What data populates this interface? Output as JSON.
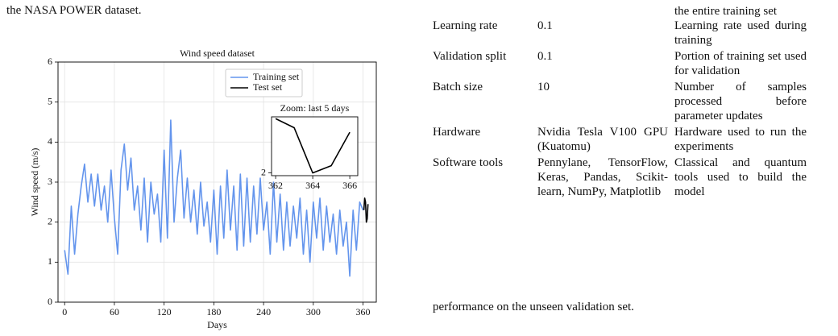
{
  "text_top": "the NASA POWER dataset.",
  "chart_data": [
    {
      "type": "line",
      "title": "Wind speed dataset",
      "xlabel": "Days",
      "ylabel": "Wind speed (m/s)",
      "xlim": [
        -8,
        376
      ],
      "ylim": [
        0,
        6
      ],
      "xticks": [
        0,
        60,
        120,
        180,
        240,
        300,
        360
      ],
      "yticks": [
        0,
        1,
        2,
        3,
        4,
        5,
        6
      ],
      "grid": true,
      "legend": "upper right",
      "series": [
        {
          "name": "Training set",
          "color": "#6495ed",
          "x": [
            0,
            4,
            8,
            12,
            16,
            20,
            24,
            28,
            32,
            36,
            40,
            44,
            48,
            52,
            56,
            60,
            64,
            68,
            72,
            76,
            80,
            84,
            88,
            92,
            96,
            100,
            104,
            108,
            112,
            116,
            120,
            124,
            128,
            132,
            136,
            140,
            144,
            148,
            152,
            156,
            160,
            164,
            168,
            172,
            176,
            180,
            184,
            188,
            192,
            196,
            200,
            204,
            208,
            212,
            216,
            220,
            224,
            228,
            232,
            236,
            240,
            244,
            248,
            252,
            256,
            260,
            264,
            268,
            272,
            276,
            280,
            284,
            288,
            292,
            296,
            300,
            304,
            308,
            312,
            316,
            320,
            324,
            328,
            332,
            336,
            340,
            344,
            348,
            352,
            356,
            360
          ],
          "values": [
            1.3,
            0.7,
            2.4,
            1.2,
            2.2,
            2.9,
            3.45,
            2.5,
            3.2,
            2.4,
            3.2,
            2.3,
            2.9,
            2.0,
            3.3,
            2.1,
            1.2,
            3.3,
            3.95,
            2.8,
            3.6,
            2.3,
            2.9,
            1.8,
            3.1,
            1.5,
            3.0,
            2.2,
            2.7,
            1.5,
            3.8,
            1.6,
            4.55,
            2.0,
            3.1,
            3.8,
            2.1,
            3.1,
            2.0,
            2.8,
            1.7,
            3.0,
            1.9,
            2.5,
            1.5,
            2.8,
            1.2,
            2.9,
            1.6,
            3.3,
            1.8,
            2.9,
            1.3,
            3.2,
            1.4,
            3.1,
            1.5,
            2.9,
            1.7,
            3.1,
            1.8,
            2.5,
            1.2,
            3.0,
            1.5,
            2.7,
            1.3,
            2.5,
            1.4,
            2.4,
            1.6,
            2.6,
            1.2,
            2.3,
            1.0,
            2.5,
            1.6,
            2.6,
            1.3,
            2.4,
            1.5,
            2.2,
            1.2,
            2.3,
            1.4,
            2.0,
            0.65,
            2.3,
            1.3,
            2.5,
            2.3
          ]
        },
        {
          "name": "Test set",
          "color": "#000000",
          "x": [
            361,
            362,
            363,
            364,
            365,
            366
          ],
          "values": [
            2.3,
            2.6,
            2.5,
            2.0,
            2.08,
            2.45
          ]
        }
      ]
    },
    {
      "type": "line",
      "title": "Zoom: last 5 days",
      "xlim": [
        361.78,
        366.43
      ],
      "ylim": [
        1.97,
        2.62
      ],
      "xticks": [
        362,
        364,
        366
      ],
      "yticks": [
        2
      ],
      "grid": false,
      "series": [
        {
          "color": "#000000",
          "x": [
            362,
            363,
            364,
            365,
            366
          ],
          "values": [
            2.6,
            2.5,
            2.0,
            2.08,
            2.45
          ]
        }
      ]
    }
  ],
  "table": {
    "continued_text": "the entire training set",
    "rows": [
      [
        "Learning rate",
        "0.1",
        "Learning rate used during training"
      ],
      [
        "Validation split",
        "0.1",
        "Portion of training set used for validation"
      ],
      [
        "Batch size",
        "10",
        "Number of samples processed before parameter updates"
      ],
      [
        "Hardware",
        "Nvidia Tesla V100 GPU (Kuatomu)",
        "Hardware used to run the experiments"
      ],
      [
        "Software tools",
        "Pennylane, TensorFlow, Keras, Pandas, Scikit-learn, NumPy, Matplotlib",
        "Classical and quantum tools used to build the model"
      ]
    ]
  },
  "text_bottom": "performance on the unseen validation set."
}
